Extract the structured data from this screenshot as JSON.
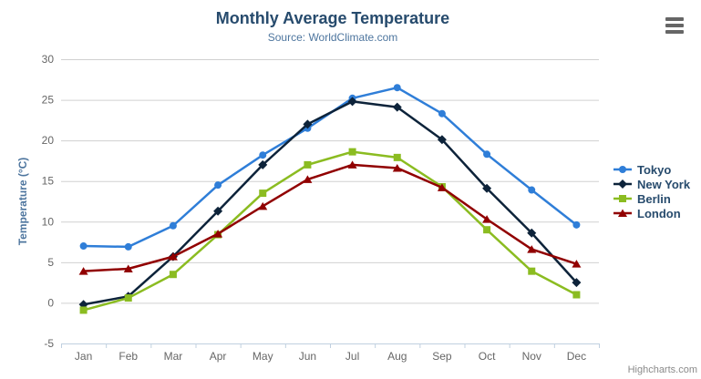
{
  "chart_data": {
    "type": "line",
    "title": "Monthly Average Temperature",
    "subtitle": "Source: WorldClimate.com",
    "xlabel": "",
    "ylabel": "Temperature (°C)",
    "ylim": [
      -5,
      30
    ],
    "ytick_step": 5,
    "grid": true,
    "legend_position": "right",
    "categories": [
      "Jan",
      "Feb",
      "Mar",
      "Apr",
      "May",
      "Jun",
      "Jul",
      "Aug",
      "Sep",
      "Oct",
      "Nov",
      "Dec"
    ],
    "series": [
      {
        "name": "Tokyo",
        "color": "#2f7ed8",
        "marker": "circle",
        "values": [
          7.0,
          6.9,
          9.5,
          14.5,
          18.2,
          21.5,
          25.2,
          26.5,
          23.3,
          18.3,
          13.9,
          9.6
        ]
      },
      {
        "name": "New York",
        "color": "#0d233a",
        "marker": "diamond",
        "values": [
          -0.2,
          0.8,
          5.7,
          11.3,
          17.0,
          22.0,
          24.8,
          24.1,
          20.1,
          14.1,
          8.6,
          2.5
        ]
      },
      {
        "name": "Berlin",
        "color": "#8bbc21",
        "marker": "square",
        "values": [
          -0.9,
          0.6,
          3.5,
          8.4,
          13.5,
          17.0,
          18.6,
          17.9,
          14.3,
          9.0,
          3.9,
          1.0
        ]
      },
      {
        "name": "London",
        "color": "#910000",
        "marker": "triangle",
        "values": [
          3.9,
          4.2,
          5.7,
          8.5,
          11.9,
          15.2,
          17.0,
          16.6,
          14.2,
          10.3,
          6.6,
          4.8
        ]
      }
    ],
    "yticks": [
      -5,
      0,
      5,
      10,
      15,
      20,
      25,
      30
    ]
  },
  "credits": "Highcharts.com",
  "colors": {
    "title": "#274b6d",
    "subtitle": "#4d759e",
    "axis_title": "#4d759e",
    "tick_label": "#666666",
    "grid_line": "#d0d0d0",
    "axis_line": "#c0d0e0",
    "legend_text": "#274b6d",
    "credit": "#8a8a8a",
    "menu_icon": "#666666",
    "background": "#ffffff"
  }
}
